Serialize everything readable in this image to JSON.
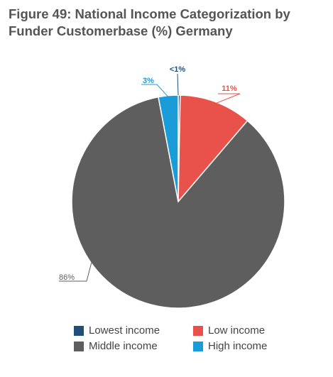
{
  "chart_data": {
    "type": "pie",
    "title": "Figure 49: National Income Categorization by Funder Customerbase (%) Germany",
    "title_lines": [
      "Figure 49: National Income Categorization by",
      "Funder Customerbase (%) Germany"
    ],
    "categories": [
      "Lowest income",
      "Low income",
      "Middle income",
      "High income"
    ],
    "values": [
      0.3,
      11,
      86,
      3
    ],
    "labels": [
      "<1%",
      "11%",
      "86%",
      "3%"
    ],
    "colors": [
      "#1f4e79",
      "#e8524a",
      "#5f5e5e",
      "#1a9cd8"
    ],
    "legend_position": "bottom",
    "start_angle": "12 o'clock",
    "direction": "clockwise"
  },
  "legend": {
    "items": [
      {
        "label": "Lowest income",
        "color": "#1f4e79"
      },
      {
        "label": "Low income",
        "color": "#e8524a"
      },
      {
        "label": "Middle income",
        "color": "#5f5e5e"
      },
      {
        "label": "High income",
        "color": "#1a9cd8"
      }
    ]
  }
}
